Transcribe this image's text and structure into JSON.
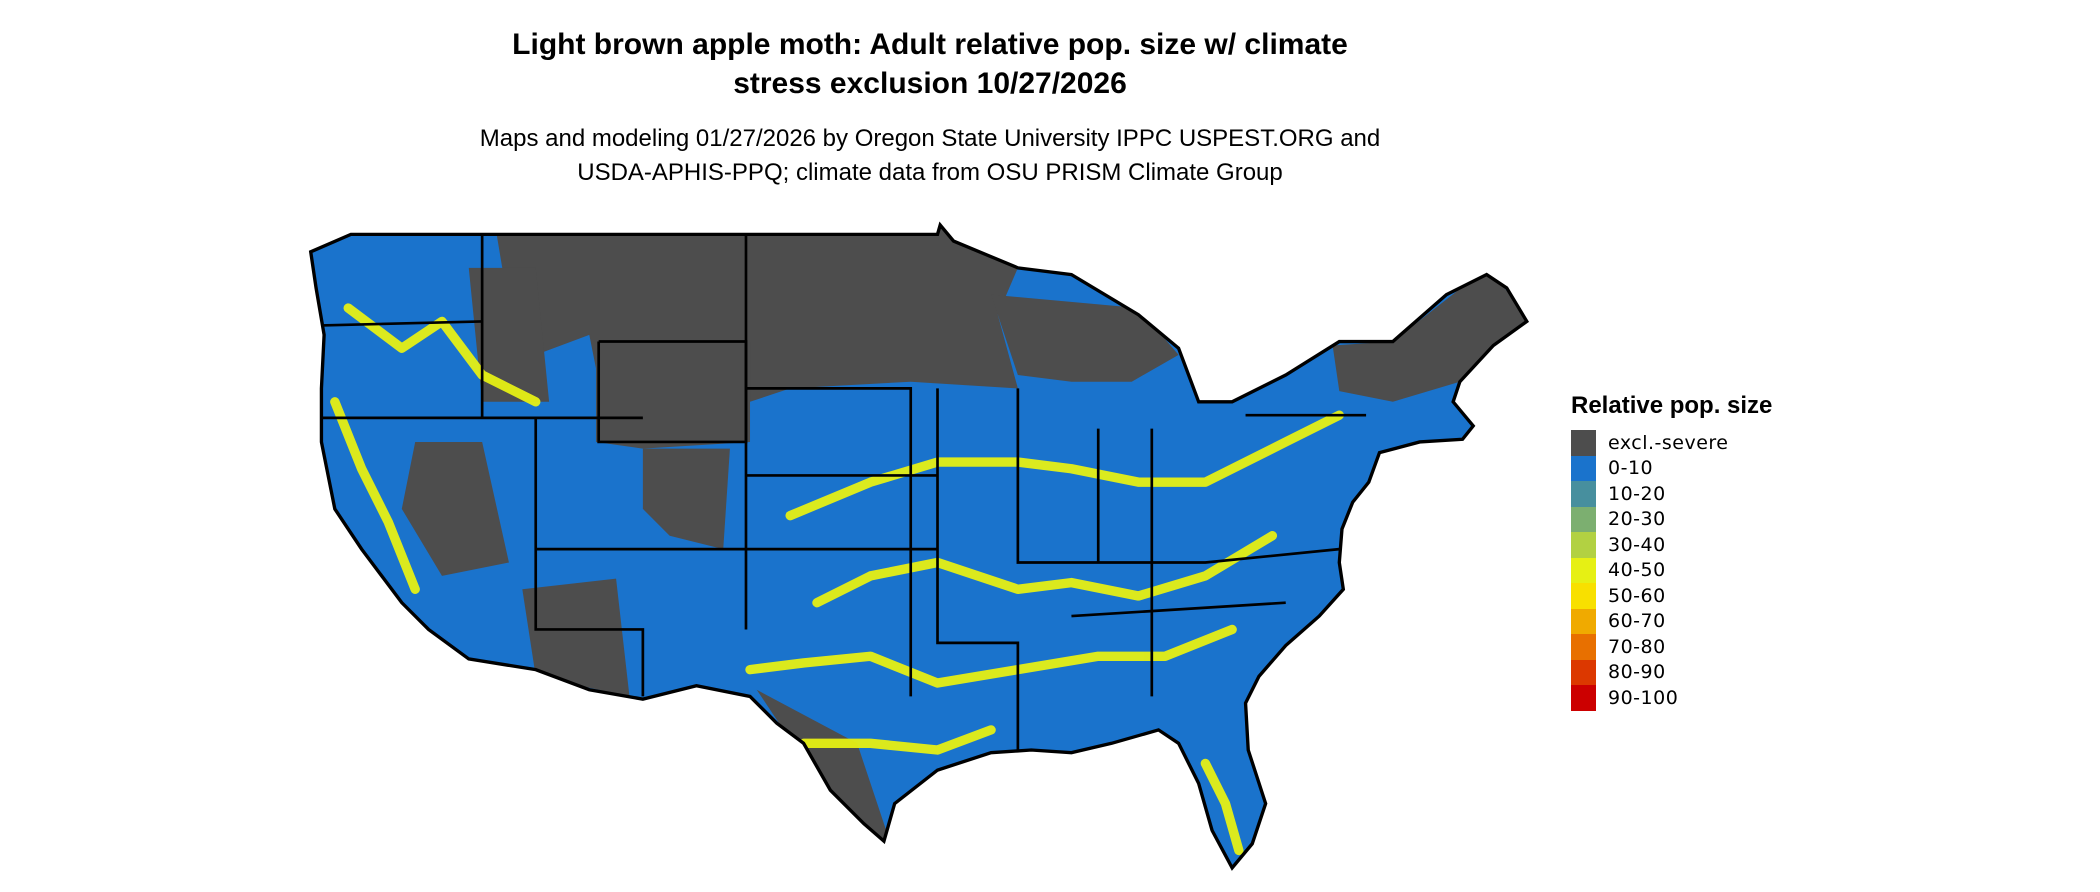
{
  "title_line1": "Light brown apple moth: Adult relative pop. size w/ climate",
  "title_line2": "stress exclusion 10/27/2026",
  "subtitle_line1": "Maps and modeling 01/27/2026 by Oregon State University IPPC USPEST.ORG and",
  "subtitle_line2": "USDA-APHIS-PPQ; climate data from OSU PRISM Climate Group",
  "legend": {
    "title": "Relative pop. size",
    "items": [
      {
        "label": "excl.-severe",
        "color": "#4d4d4d"
      },
      {
        "label": "0-10",
        "color": "#1a73cc"
      },
      {
        "label": "10-20",
        "color": "#478f9e"
      },
      {
        "label": "20-30",
        "color": "#7caf70"
      },
      {
        "label": "30-40",
        "color": "#b2d142"
      },
      {
        "label": "40-50",
        "color": "#e6f014"
      },
      {
        "label": "50-60",
        "color": "#f8e000"
      },
      {
        "label": "60-70",
        "color": "#f0aa00"
      },
      {
        "label": "70-80",
        "color": "#e87000"
      },
      {
        "label": "80-90",
        "color": "#dc3800"
      },
      {
        "label": "90-100",
        "color": "#cc0000"
      }
    ]
  }
}
